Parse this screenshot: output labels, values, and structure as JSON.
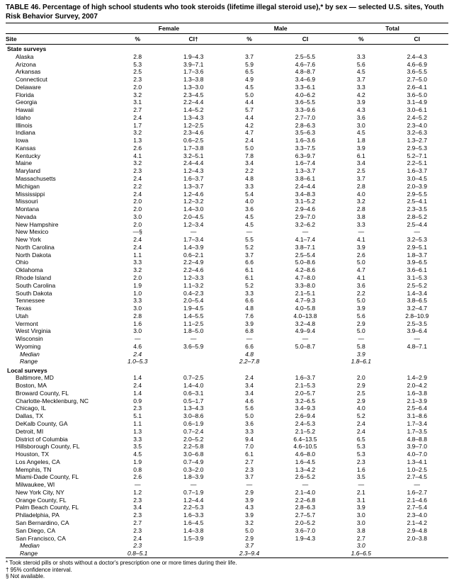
{
  "title": "TABLE 46. Percentage of high school students who took steroids (lifetime illegal steroid use),* by sex — selected U.S. sites, Youth Risk Behavior Survey, 2007",
  "columns": {
    "site": "Site",
    "groups": [
      "Female",
      "Male",
      "Total"
    ],
    "sub": [
      "%",
      "CI†",
      "%",
      "CI",
      "%",
      "CI"
    ]
  },
  "sections": [
    {
      "header": "State surveys",
      "rows": [
        {
          "site": "Alaska",
          "f_pct": "2.8",
          "f_ci": "1.9–4.3",
          "m_pct": "3.7",
          "m_ci": "2.5–5.5",
          "t_pct": "3.3",
          "t_ci": "2.4–4.3"
        },
        {
          "site": "Arizona",
          "f_pct": "5.3",
          "f_ci": "3.9–7.1",
          "m_pct": "5.9",
          "m_ci": "4.6–7.6",
          "t_pct": "5.6",
          "t_ci": "4.6–6.9"
        },
        {
          "site": "Arkansas",
          "f_pct": "2.5",
          "f_ci": "1.7–3.6",
          "m_pct": "6.5",
          "m_ci": "4.8–8.7",
          "t_pct": "4.5",
          "t_ci": "3.6–5.5"
        },
        {
          "site": "Connecticut",
          "f_pct": "2.3",
          "f_ci": "1.3–3.8",
          "m_pct": "4.9",
          "m_ci": "3.4–6.9",
          "t_pct": "3.7",
          "t_ci": "2.7–5.0"
        },
        {
          "site": "Delaware",
          "f_pct": "2.0",
          "f_ci": "1.3–3.0",
          "m_pct": "4.5",
          "m_ci": "3.3–6.1",
          "t_pct": "3.3",
          "t_ci": "2.6–4.1"
        },
        {
          "site": "Florida",
          "f_pct": "3.2",
          "f_ci": "2.3–4.5",
          "m_pct": "5.0",
          "m_ci": "4.0–6.2",
          "t_pct": "4.2",
          "t_ci": "3.6–5.0"
        },
        {
          "site": "Georgia",
          "f_pct": "3.1",
          "f_ci": "2.2–4.4",
          "m_pct": "4.4",
          "m_ci": "3.6–5.5",
          "t_pct": "3.9",
          "t_ci": "3.1–4.9"
        },
        {
          "site": "Hawaii",
          "f_pct": "2.7",
          "f_ci": "1.4–5.2",
          "m_pct": "5.7",
          "m_ci": "3.3–9.6",
          "t_pct": "4.3",
          "t_ci": "3.0–6.1"
        },
        {
          "site": "Idaho",
          "f_pct": "2.4",
          "f_ci": "1.3–4.3",
          "m_pct": "4.4",
          "m_ci": "2.7–7.0",
          "t_pct": "3.6",
          "t_ci": "2.4–5.2"
        },
        {
          "site": "Illinois",
          "f_pct": "1.7",
          "f_ci": "1.2–2.5",
          "m_pct": "4.2",
          "m_ci": "2.8–6.3",
          "t_pct": "3.0",
          "t_ci": "2.3–4.0"
        },
        {
          "site": "Indiana",
          "f_pct": "3.2",
          "f_ci": "2.3–4.6",
          "m_pct": "4.7",
          "m_ci": "3.5–6.3",
          "t_pct": "4.5",
          "t_ci": "3.2–6.3"
        },
        {
          "site": "Iowa",
          "f_pct": "1.3",
          "f_ci": "0.6–2.5",
          "m_pct": "2.4",
          "m_ci": "1.6–3.6",
          "t_pct": "1.8",
          "t_ci": "1.3–2.7"
        },
        {
          "site": "Kansas",
          "f_pct": "2.6",
          "f_ci": "1.7–3.8",
          "m_pct": "5.0",
          "m_ci": "3.3–7.5",
          "t_pct": "3.9",
          "t_ci": "2.9–5.3"
        },
        {
          "site": "Kentucky",
          "f_pct": "4.1",
          "f_ci": "3.2–5.1",
          "m_pct": "7.8",
          "m_ci": "6.3–9.7",
          "t_pct": "6.1",
          "t_ci": "5.2–7.1"
        },
        {
          "site": "Maine",
          "f_pct": "3.2",
          "f_ci": "2.4–4.4",
          "m_pct": "3.4",
          "m_ci": "1.6–7.4",
          "t_pct": "3.4",
          "t_ci": "2.2–5.1"
        },
        {
          "site": "Maryland",
          "f_pct": "2.3",
          "f_ci": "1.2–4.3",
          "m_pct": "2.2",
          "m_ci": "1.3–3.7",
          "t_pct": "2.5",
          "t_ci": "1.6–3.7"
        },
        {
          "site": "Massachusetts",
          "f_pct": "2.4",
          "f_ci": "1.6–3.7",
          "m_pct": "4.8",
          "m_ci": "3.8–6.1",
          "t_pct": "3.7",
          "t_ci": "3.0–4.5"
        },
        {
          "site": "Michigan",
          "f_pct": "2.2",
          "f_ci": "1.3–3.7",
          "m_pct": "3.3",
          "m_ci": "2.4–4.4",
          "t_pct": "2.8",
          "t_ci": "2.0–3.9"
        },
        {
          "site": "Mississippi",
          "f_pct": "2.4",
          "f_ci": "1.2–4.6",
          "m_pct": "5.4",
          "m_ci": "3.4–8.3",
          "t_pct": "4.0",
          "t_ci": "2.9–5.5"
        },
        {
          "site": "Missouri",
          "f_pct": "2.0",
          "f_ci": "1.2–3.2",
          "m_pct": "4.0",
          "m_ci": "3.1–5.2",
          "t_pct": "3.2",
          "t_ci": "2.5–4.1"
        },
        {
          "site": "Montana",
          "f_pct": "2.0",
          "f_ci": "1.4–3.0",
          "m_pct": "3.6",
          "m_ci": "2.9–4.6",
          "t_pct": "2.8",
          "t_ci": "2.3–3.5"
        },
        {
          "site": "Nevada",
          "f_pct": "3.0",
          "f_ci": "2.0–4.5",
          "m_pct": "4.5",
          "m_ci": "2.9–7.0",
          "t_pct": "3.8",
          "t_ci": "2.8–5.2"
        },
        {
          "site": "New Hampshire",
          "f_pct": "2.0",
          "f_ci": "1.2–3.4",
          "m_pct": "4.5",
          "m_ci": "3.2–6.2",
          "t_pct": "3.3",
          "t_ci": "2.5–4.4"
        },
        {
          "site": "New Mexico",
          "f_pct": "—§",
          "f_ci": "—",
          "m_pct": "—",
          "m_ci": "—",
          "t_pct": "—",
          "t_ci": "—"
        },
        {
          "site": "New York",
          "f_pct": "2.4",
          "f_ci": "1.7–3.4",
          "m_pct": "5.5",
          "m_ci": "4.1–7.4",
          "t_pct": "4.1",
          "t_ci": "3.2–5.3"
        },
        {
          "site": "North Carolina",
          "f_pct": "2.4",
          "f_ci": "1.4–3.9",
          "m_pct": "5.2",
          "m_ci": "3.8–7.1",
          "t_pct": "3.9",
          "t_ci": "2.9–5.1"
        },
        {
          "site": "North Dakota",
          "f_pct": "1.1",
          "f_ci": "0.6–2.1",
          "m_pct": "3.7",
          "m_ci": "2.5–5.4",
          "t_pct": "2.6",
          "t_ci": "1.8–3.7"
        },
        {
          "site": "Ohio",
          "f_pct": "3.3",
          "f_ci": "2.2–4.9",
          "m_pct": "6.6",
          "m_ci": "5.0–8.6",
          "t_pct": "5.0",
          "t_ci": "3.9–6.5"
        },
        {
          "site": "Oklahoma",
          "f_pct": "3.2",
          "f_ci": "2.2–4.6",
          "m_pct": "6.1",
          "m_ci": "4.2–8.6",
          "t_pct": "4.7",
          "t_ci": "3.6–6.1"
        },
        {
          "site": "Rhode Island",
          "f_pct": "2.0",
          "f_ci": "1.2–3.3",
          "m_pct": "6.1",
          "m_ci": "4.7–8.0",
          "t_pct": "4.1",
          "t_ci": "3.1–5.3"
        },
        {
          "site": "South Carolina",
          "f_pct": "1.9",
          "f_ci": "1.1–3.2",
          "m_pct": "5.2",
          "m_ci": "3.3–8.0",
          "t_pct": "3.6",
          "t_ci": "2.5–5.2"
        },
        {
          "site": "South Dakota",
          "f_pct": "1.0",
          "f_ci": "0.4–2.3",
          "m_pct": "3.3",
          "m_ci": "2.1–5.1",
          "t_pct": "2.2",
          "t_ci": "1.4–3.4"
        },
        {
          "site": "Tennessee",
          "f_pct": "3.3",
          "f_ci": "2.0–5.4",
          "m_pct": "6.6",
          "m_ci": "4.7–9.3",
          "t_pct": "5.0",
          "t_ci": "3.8–6.5"
        },
        {
          "site": "Texas",
          "f_pct": "3.0",
          "f_ci": "1.9–4.5",
          "m_pct": "4.8",
          "m_ci": "4.0–5.8",
          "t_pct": "3.9",
          "t_ci": "3.2–4.7"
        },
        {
          "site": "Utah",
          "f_pct": "2.8",
          "f_ci": "1.4–5.5",
          "m_pct": "7.6",
          "m_ci": "4.0–13.8",
          "t_pct": "5.6",
          "t_ci": "2.8–10.9"
        },
        {
          "site": "Vermont",
          "f_pct": "1.6",
          "f_ci": "1.1–2.5",
          "m_pct": "3.9",
          "m_ci": "3.2–4.8",
          "t_pct": "2.9",
          "t_ci": "2.5–3.5"
        },
        {
          "site": "West Virginia",
          "f_pct": "3.0",
          "f_ci": "1.8–5.0",
          "m_pct": "6.8",
          "m_ci": "4.9–9.4",
          "t_pct": "5.0",
          "t_ci": "3.9–6.4"
        },
        {
          "site": "Wisconsin",
          "f_pct": "—",
          "f_ci": "—",
          "m_pct": "—",
          "m_ci": "—",
          "t_pct": "—",
          "t_ci": "—"
        },
        {
          "site": "Wyoming",
          "f_pct": "4.6",
          "f_ci": "3.6–5.9",
          "m_pct": "6.6",
          "m_ci": "5.0–8.7",
          "t_pct": "5.8",
          "t_ci": "4.8–7.1"
        },
        {
          "site": "Median",
          "italic": true,
          "f_pct": "2.4",
          "f_ci": "",
          "m_pct": "4.8",
          "m_ci": "",
          "t_pct": "3.9",
          "t_ci": ""
        },
        {
          "site": "Range",
          "italic": true,
          "f_pct": "1.0–5.3",
          "f_ci": "",
          "m_pct": "2.2–7.8",
          "m_ci": "",
          "t_pct": "1.8–6.1",
          "t_ci": ""
        }
      ]
    },
    {
      "header": "Local surveys",
      "rows": [
        {
          "site": "Baltimore, MD",
          "f_pct": "1.4",
          "f_ci": "0.7–2.5",
          "m_pct": "2.4",
          "m_ci": "1.6–3.7",
          "t_pct": "2.0",
          "t_ci": "1.4–2.9"
        },
        {
          "site": "Boston, MA",
          "f_pct": "2.4",
          "f_ci": "1.4–4.0",
          "m_pct": "3.4",
          "m_ci": "2.1–5.3",
          "t_pct": "2.9",
          "t_ci": "2.0–4.2"
        },
        {
          "site": "Broward County, FL",
          "f_pct": "1.4",
          "f_ci": "0.6–3.1",
          "m_pct": "3.4",
          "m_ci": "2.0–5.7",
          "t_pct": "2.5",
          "t_ci": "1.6–3.8"
        },
        {
          "site": "Charlotte-Mecklenburg, NC",
          "f_pct": "0.9",
          "f_ci": "0.5–1.7",
          "m_pct": "4.6",
          "m_ci": "3.2–6.5",
          "t_pct": "2.9",
          "t_ci": "2.1–3.9"
        },
        {
          "site": "Chicago, IL",
          "f_pct": "2.3",
          "f_ci": "1.3–4.3",
          "m_pct": "5.6",
          "m_ci": "3.4–9.3",
          "t_pct": "4.0",
          "t_ci": "2.5–6.4"
        },
        {
          "site": "Dallas, TX",
          "f_pct": "5.1",
          "f_ci": "3.0–8.6",
          "m_pct": "5.0",
          "m_ci": "2.6–9.4",
          "t_pct": "5.2",
          "t_ci": "3.1–8.6"
        },
        {
          "site": "DeKalb County, GA",
          "f_pct": "1.1",
          "f_ci": "0.6–1.9",
          "m_pct": "3.6",
          "m_ci": "2.4–5.3",
          "t_pct": "2.4",
          "t_ci": "1.7–3.4"
        },
        {
          "site": "Detroit, MI",
          "f_pct": "1.3",
          "f_ci": "0.7–2.4",
          "m_pct": "3.3",
          "m_ci": "2.1–5.2",
          "t_pct": "2.4",
          "t_ci": "1.7–3.5"
        },
        {
          "site": "District of Columbia",
          "f_pct": "3.3",
          "f_ci": "2.0–5.2",
          "m_pct": "9.4",
          "m_ci": "6.4–13.5",
          "t_pct": "6.5",
          "t_ci": "4.8–8.8"
        },
        {
          "site": "Hillsborough County, FL",
          "f_pct": "3.5",
          "f_ci": "2.2–5.8",
          "m_pct": "7.0",
          "m_ci": "4.6–10.5",
          "t_pct": "5.3",
          "t_ci": "3.9–7.0"
        },
        {
          "site": "Houston, TX",
          "f_pct": "4.5",
          "f_ci": "3.0–6.8",
          "m_pct": "6.1",
          "m_ci": "4.6–8.0",
          "t_pct": "5.3",
          "t_ci": "4.0–7.0"
        },
        {
          "site": "Los Angeles, CA",
          "f_pct": "1.9",
          "f_ci": "0.7–4.9",
          "m_pct": "2.7",
          "m_ci": "1.6–4.5",
          "t_pct": "2.3",
          "t_ci": "1.3–4.1"
        },
        {
          "site": "Memphis, TN",
          "f_pct": "0.8",
          "f_ci": "0.3–2.0",
          "m_pct": "2.3",
          "m_ci": "1.3–4.2",
          "t_pct": "1.6",
          "t_ci": "1.0–2.5"
        },
        {
          "site": "Miami-Dade County, FL",
          "f_pct": "2.6",
          "f_ci": "1.8–3.9",
          "m_pct": "3.7",
          "m_ci": "2.6–5.2",
          "t_pct": "3.5",
          "t_ci": "2.7–4.5"
        },
        {
          "site": "Milwaukee, WI",
          "f_pct": "—",
          "f_ci": "—",
          "m_pct": "—",
          "m_ci": "—",
          "t_pct": "—",
          "t_ci": "—"
        },
        {
          "site": "New York City, NY",
          "f_pct": "1.2",
          "f_ci": "0.7–1.9",
          "m_pct": "2.9",
          "m_ci": "2.1–4.0",
          "t_pct": "2.1",
          "t_ci": "1.6–2.7"
        },
        {
          "site": "Orange County, FL",
          "f_pct": "2.3",
          "f_ci": "1.2–4.4",
          "m_pct": "3.9",
          "m_ci": "2.2–6.8",
          "t_pct": "3.1",
          "t_ci": "2.1–4.6"
        },
        {
          "site": "Palm Beach County, FL",
          "f_pct": "3.4",
          "f_ci": "2.2–5.3",
          "m_pct": "4.3",
          "m_ci": "2.8–6.3",
          "t_pct": "3.9",
          "t_ci": "2.7–5.4"
        },
        {
          "site": "Philadelphia, PA",
          "f_pct": "2.3",
          "f_ci": "1.6–3.3",
          "m_pct": "3.9",
          "m_ci": "2.7–5.7",
          "t_pct": "3.0",
          "t_ci": "2.3–4.0"
        },
        {
          "site": "San Bernardino, CA",
          "f_pct": "2.7",
          "f_ci": "1.6–4.5",
          "m_pct": "3.2",
          "m_ci": "2.0–5.2",
          "t_pct": "3.0",
          "t_ci": "2.1–4.2"
        },
        {
          "site": "San Diego, CA",
          "f_pct": "2.3",
          "f_ci": "1.4–3.8",
          "m_pct": "5.0",
          "m_ci": "3.6–7.0",
          "t_pct": "3.8",
          "t_ci": "2.9–4.8"
        },
        {
          "site": "San Francisco, CA",
          "f_pct": "2.4",
          "f_ci": "1.5–3.9",
          "m_pct": "2.9",
          "m_ci": "1.9–4.3",
          "t_pct": "2.7",
          "t_ci": "2.0–3.8"
        },
        {
          "site": "Median",
          "italic": true,
          "f_pct": "2.3",
          "f_ci": "",
          "m_pct": "3.7",
          "m_ci": "",
          "t_pct": "3.0",
          "t_ci": ""
        },
        {
          "site": "Range",
          "italic": true,
          "f_pct": "0.8–5.1",
          "f_ci": "",
          "m_pct": "2.3–9.4",
          "m_ci": "",
          "t_pct": "1.6–6.5",
          "t_ci": ""
        }
      ]
    }
  ],
  "footnotes": [
    "* Took steroid pills or shots without a doctor's prescription one or more times during their life.",
    "† 95% confidence interval.",
    "§ Not available."
  ]
}
